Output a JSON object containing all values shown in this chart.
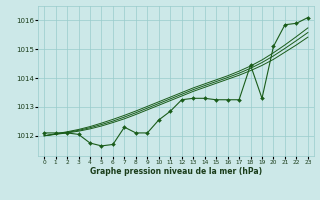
{
  "title": "Graphe pression niveau de la mer (hPa)",
  "xlabel_ticks": [
    "0",
    "1",
    "2",
    "3",
    "4",
    "5",
    "6",
    "7",
    "8",
    "9",
    "10",
    "11",
    "12",
    "13",
    "14",
    "15",
    "16",
    "17",
    "18",
    "19",
    "20",
    "21",
    "22",
    "23"
  ],
  "ylim": [
    1011.3,
    1016.5
  ],
  "xlim": [
    -0.5,
    23.5
  ],
  "yticks": [
    1012,
    1013,
    1014,
    1015,
    1016
  ],
  "background_color": "#cce8e8",
  "grid_color": "#99cccc",
  "line_color": "#1a5c1a",
  "title_color": "#1a3d1a",
  "main_series": [
    1012.1,
    1012.1,
    1012.1,
    1012.05,
    1011.75,
    1011.65,
    1011.7,
    1012.3,
    1012.1,
    1012.1,
    1012.55,
    1012.85,
    1013.25,
    1013.3,
    1013.3,
    1013.25,
    1013.25,
    1013.25,
    1014.45,
    1013.3,
    1015.1,
    1015.85,
    1015.9,
    1016.1
  ],
  "smooth_line1": [
    1012.0,
    1012.05,
    1012.1,
    1012.16,
    1012.24,
    1012.34,
    1012.46,
    1012.59,
    1012.74,
    1012.9,
    1013.06,
    1013.22,
    1013.38,
    1013.54,
    1013.68,
    1013.82,
    1013.96,
    1014.1,
    1014.26,
    1014.44,
    1014.65,
    1014.9,
    1015.15,
    1015.42
  ],
  "smooth_line2": [
    1012.0,
    1012.06,
    1012.12,
    1012.19,
    1012.28,
    1012.39,
    1012.51,
    1012.65,
    1012.8,
    1012.96,
    1013.12,
    1013.28,
    1013.44,
    1013.6,
    1013.74,
    1013.88,
    1014.02,
    1014.17,
    1014.34,
    1014.54,
    1014.77,
    1015.03,
    1015.3,
    1015.58
  ],
  "smooth_line3": [
    1012.0,
    1012.07,
    1012.14,
    1012.22,
    1012.32,
    1012.44,
    1012.57,
    1012.71,
    1012.86,
    1013.02,
    1013.18,
    1013.34,
    1013.5,
    1013.66,
    1013.8,
    1013.94,
    1014.08,
    1014.24,
    1014.42,
    1014.63,
    1014.88,
    1015.15,
    1015.44,
    1015.74
  ]
}
